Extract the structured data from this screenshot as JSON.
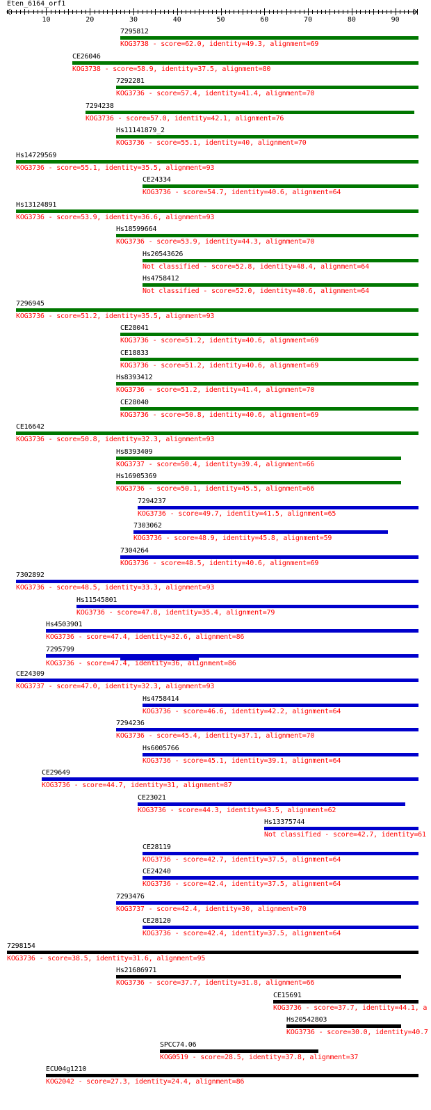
{
  "query": {
    "name": "Eten_6164_orf1",
    "axis_min": 1,
    "axis_max": 95,
    "tick_labels": [
      "10",
      "20",
      "30",
      "40",
      "50",
      "60",
      "70",
      "80",
      "90"
    ]
  },
  "colors": {
    "green": "#007700",
    "blue": "#0000cc",
    "black": "#000000",
    "desc": "#ff0000"
  },
  "hits": [
    {
      "name": "7295812",
      "start": 27,
      "end": 95,
      "color": "green",
      "desc": "KOG3738 - score=62.0, identity=49.3, alignment=69"
    },
    {
      "name": "CE26046",
      "start": 16,
      "end": 95,
      "color": "green",
      "desc": "KOG3738 - score=58.9, identity=37.5, alignment=80"
    },
    {
      "name": "7292281",
      "start": 26,
      "end": 95,
      "color": "green",
      "desc": "KOG3736 - score=57.4, identity=41.4, alignment=70"
    },
    {
      "name": "7294238",
      "start": 19,
      "end": 94,
      "color": "green",
      "desc": "KOG3736 - score=57.0, identity=42.1, alignment=76"
    },
    {
      "name": "Hs11141879_2",
      "start": 26,
      "end": 95,
      "color": "green",
      "desc": "KOG3736 - score=55.1, identity=40, alignment=70"
    },
    {
      "name": "Hs14729569",
      "start": 3,
      "end": 95,
      "color": "green",
      "desc": "KOG3736 - score=55.1, identity=35.5, alignment=93"
    },
    {
      "name": "CE24334",
      "start": 32,
      "end": 95,
      "color": "green",
      "desc": "KOG3736 - score=54.7, identity=40.6, alignment=64"
    },
    {
      "name": "Hs13124891",
      "start": 3,
      "end": 95,
      "color": "green",
      "desc": "KOG3736 - score=53.9, identity=36.6, alignment=93"
    },
    {
      "name": "Hs18599664",
      "start": 26,
      "end": 95,
      "color": "green",
      "desc": "KOG3736 - score=53.9, identity=44.3, alignment=70"
    },
    {
      "name": "Hs20543626",
      "start": 32,
      "end": 95,
      "color": "green",
      "desc": "Not classified - score=52.8, identity=48.4, alignment=64"
    },
    {
      "name": "Hs4758412",
      "start": 32,
      "end": 95,
      "color": "green",
      "desc": "Not classified - score=52.0, identity=40.6, alignment=64"
    },
    {
      "name": "7296945",
      "start": 3,
      "end": 95,
      "color": "green",
      "desc": "KOG3736 - score=51.2, identity=35.5, alignment=93"
    },
    {
      "name": "CE28041",
      "start": 27,
      "end": 95,
      "color": "green",
      "desc": "KOG3736 - score=51.2, identity=40.6, alignment=69"
    },
    {
      "name": "CE18833",
      "start": 27,
      "end": 95,
      "color": "green",
      "desc": "KOG3736 - score=51.2, identity=40.6, alignment=69"
    },
    {
      "name": "Hs8393412",
      "start": 26,
      "end": 95,
      "color": "green",
      "desc": "KOG3736 - score=51.2, identity=41.4, alignment=70"
    },
    {
      "name": "CE28040",
      "start": 27,
      "end": 95,
      "color": "green",
      "desc": "KOG3736 - score=50.8, identity=40.6, alignment=69"
    },
    {
      "name": "CE16642",
      "start": 3,
      "end": 95,
      "color": "green",
      "desc": "KOG3736 - score=50.8, identity=32.3, alignment=93"
    },
    {
      "name": "Hs8393409",
      "start": 26,
      "end": 91,
      "color": "green",
      "desc": "KOG3737 - score=50.4, identity=39.4, alignment=66"
    },
    {
      "name": "Hs16905369",
      "start": 26,
      "end": 91,
      "color": "green",
      "desc": "KOG3736 - score=50.1, identity=45.5, alignment=66"
    },
    {
      "name": "7294237",
      "start": 31,
      "end": 95,
      "color": "blue",
      "desc": "KOG3736 - score=49.7, identity=41.5, alignment=65"
    },
    {
      "name": "7303062",
      "start": 30,
      "end": 88,
      "color": "blue",
      "desc": "KOG3736 - score=48.9, identity=45.8, alignment=59"
    },
    {
      "name": "7304264",
      "start": 27,
      "end": 95,
      "color": "blue",
      "desc": "KOG3736 - score=48.5, identity=40.6, alignment=69"
    },
    {
      "name": "7302892",
      "start": 3,
      "end": 95,
      "color": "blue",
      "desc": "KOG3736 - score=48.5, identity=33.3, alignment=93"
    },
    {
      "name": "Hs11545801",
      "start": 17,
      "end": 95,
      "color": "blue",
      "desc": "KOG3736 - score=47.8, identity=35.4, alignment=79"
    },
    {
      "name": "Hs4503901",
      "start": 10,
      "end": 95,
      "color": "blue",
      "desc": "KOG3736 - score=47.4, identity=32.6, alignment=86"
    },
    {
      "name": "7295799",
      "start": 10,
      "end": 95,
      "color": "blue",
      "desc": "KOG3736 - score=47.4, identity=36, alignment=86",
      "extra": {
        "start": 27,
        "end": 45
      }
    },
    {
      "name": "CE24309",
      "start": 3,
      "end": 95,
      "color": "blue",
      "desc": "KOG3737 - score=47.0, identity=32.3, alignment=93"
    },
    {
      "name": "Hs4758414",
      "start": 32,
      "end": 95,
      "color": "blue",
      "desc": "KOG3736 - score=46.6, identity=42.2, alignment=64"
    },
    {
      "name": "7294236",
      "start": 26,
      "end": 95,
      "color": "blue",
      "desc": "KOG3736 - score=45.4, identity=37.1, alignment=70"
    },
    {
      "name": "Hs6005766",
      "start": 32,
      "end": 95,
      "color": "blue",
      "desc": "KOG3736 - score=45.1, identity=39.1, alignment=64"
    },
    {
      "name": "CE29649",
      "start": 9,
      "end": 95,
      "color": "blue",
      "desc": "KOG3736 - score=44.7, identity=31, alignment=87"
    },
    {
      "name": "CE23021",
      "start": 31,
      "end": 92,
      "color": "blue",
      "desc": "KOG3736 - score=44.3, identity=43.5, alignment=62"
    },
    {
      "name": "Hs13375744",
      "start": 60,
      "end": 95,
      "color": "blue",
      "desc": "Not classified - score=42.7, identity=61"
    },
    {
      "name": "CE28119",
      "start": 32,
      "end": 95,
      "color": "blue",
      "desc": "KOG3736 - score=42.7, identity=37.5, alignment=64"
    },
    {
      "name": "CE24240",
      "start": 32,
      "end": 95,
      "color": "blue",
      "desc": "KOG3736 - score=42.4, identity=37.5, alignment=64"
    },
    {
      "name": "7293476",
      "start": 26,
      "end": 95,
      "color": "blue",
      "desc": "KOG3737 - score=42.4, identity=30, alignment=70"
    },
    {
      "name": "CE28120",
      "start": 32,
      "end": 95,
      "color": "blue",
      "desc": "KOG3736 - score=42.4, identity=37.5, alignment=64"
    },
    {
      "name": "7298154",
      "start": 1,
      "end": 95,
      "color": "black",
      "desc": "KOG3736 - score=38.5, identity=31.6, alignment=95"
    },
    {
      "name": "Hs21686971",
      "start": 26,
      "end": 91,
      "color": "black",
      "desc": "KOG3736 - score=37.7, identity=31.8, alignment=66"
    },
    {
      "name": "CE15691",
      "start": 62,
      "end": 95,
      "color": "black",
      "desc": "KOG3736 - score=37.7, identity=44.1, a"
    },
    {
      "name": "Hs20542803",
      "start": 65,
      "end": 91,
      "color": "black",
      "desc": "KOG3736 - score=30.0, identity=40.7"
    },
    {
      "name": "SPCC74.06",
      "start": 36,
      "end": 72,
      "color": "black",
      "desc": "KOG0519 - score=28.5, identity=37.8, alignment=37"
    },
    {
      "name": "ECU04g1210",
      "start": 10,
      "end": 95,
      "color": "black",
      "desc": "KOG2042 - score=27.3, identity=24.4, alignment=86"
    }
  ]
}
